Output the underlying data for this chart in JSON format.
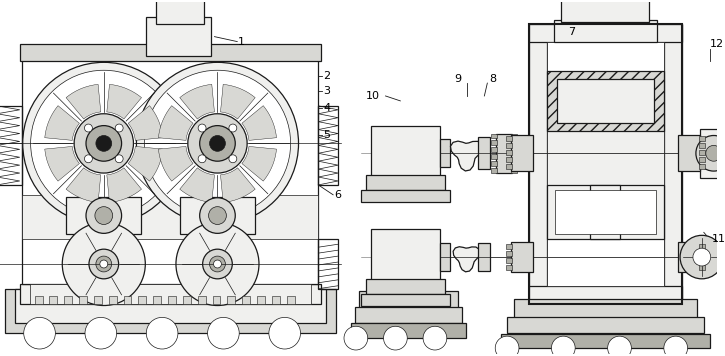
{
  "bg_color": "#ffffff",
  "line_color": "#1a1a1a",
  "fill_white": "#ffffff",
  "fill_light": "#f0f0ee",
  "fill_med": "#d8d8d4",
  "fill_dark": "#b0b0a8",
  "figsize": [
    7.25,
    3.56
  ],
  "dpi": 100,
  "lw_main": 0.9,
  "lw_thin": 0.5,
  "lw_thick": 1.5,
  "labels": [
    "1",
    "2",
    "3",
    "4",
    "5",
    "6",
    "7",
    "8",
    "9",
    "10",
    "11",
    "12"
  ],
  "label_fontsize": 8.0
}
